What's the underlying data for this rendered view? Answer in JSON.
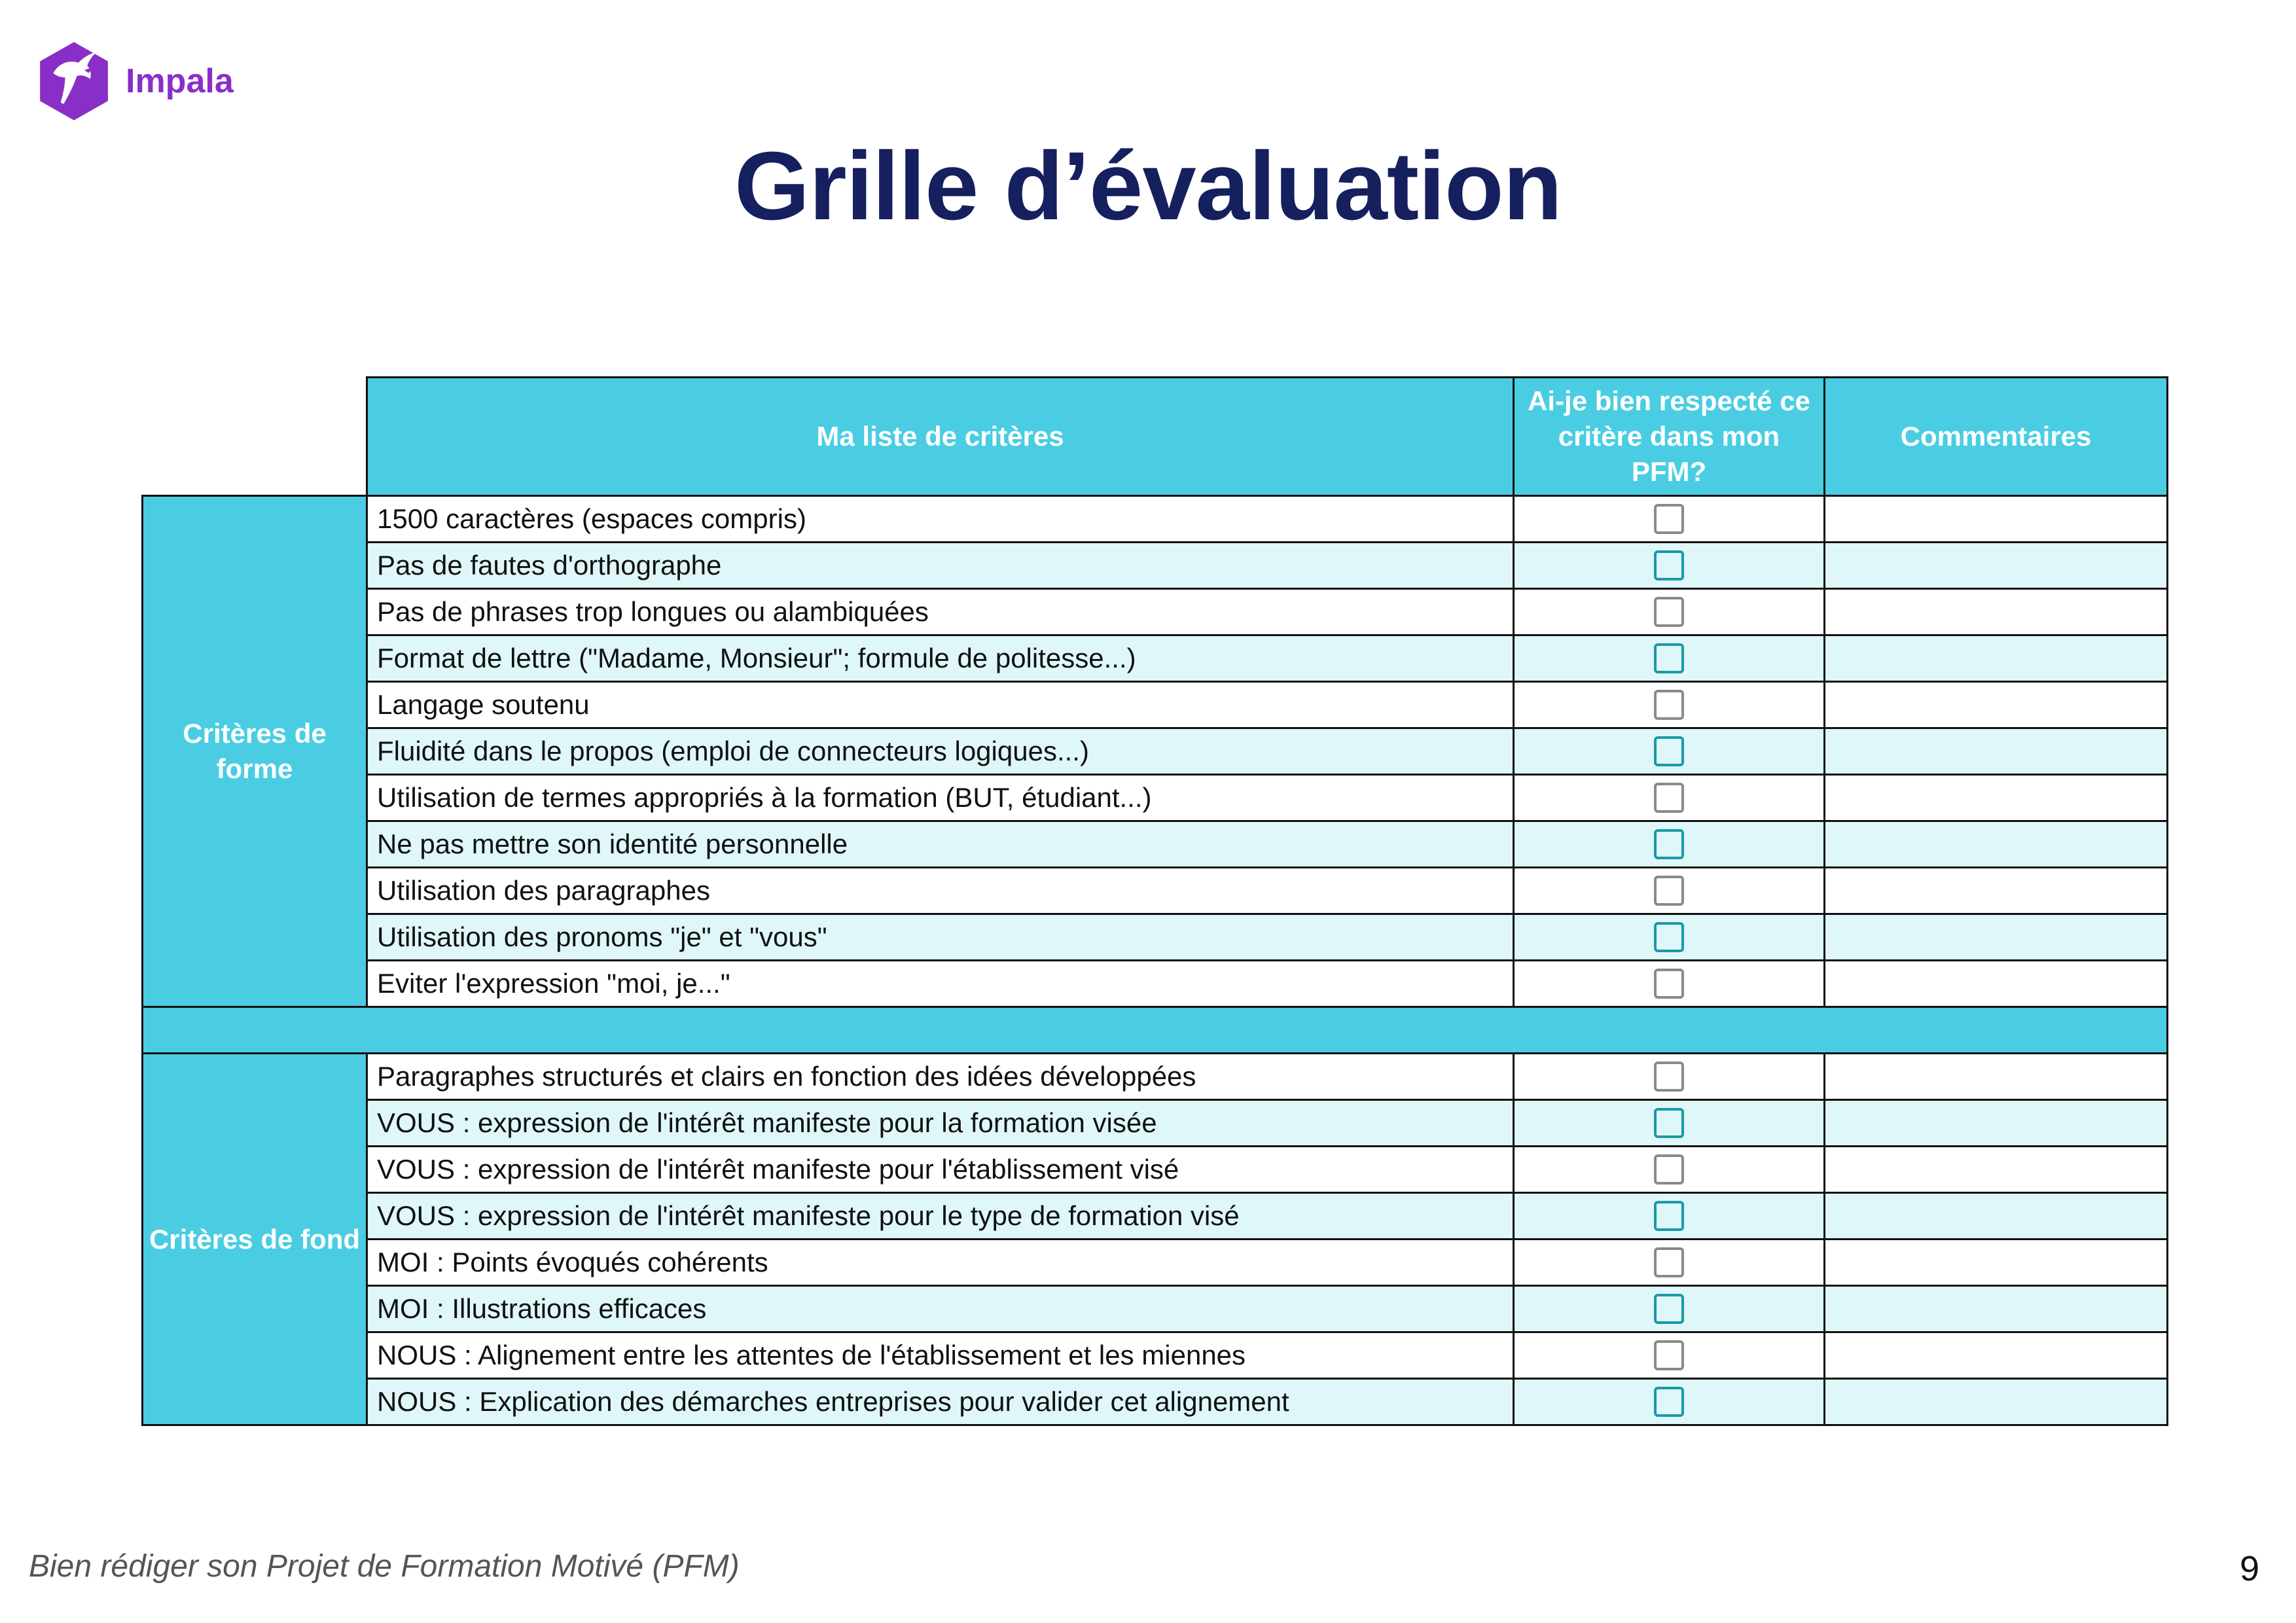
{
  "brand": {
    "name": "Impala",
    "logo_icon": "impala-logo-icon",
    "logo_color": "#8a2ec8"
  },
  "title": "Grille d’évaluation",
  "table": {
    "headers": {
      "criteria": "Ma liste de critères",
      "respected": "Ai-je bien respecté ce critère dans mon PFM?",
      "comments": "Commentaires"
    },
    "groups": [
      {
        "label": "Critères de forme",
        "rows": [
          "1500 caractères (espaces compris)",
          "Pas de fautes d'orthographe",
          "Pas de phrases trop longues ou alambiquées",
          "Format de lettre (\"Madame, Monsieur\"; formule de politesse...)",
          "Langage soutenu",
          "Fluidité dans le propos (emploi de connecteurs logiques...)",
          "Utilisation de termes appropriés à la formation (BUT, étudiant...)",
          "Ne pas mettre son identité personnelle",
          "Utilisation des paragraphes",
          "Utilisation des pronoms \"je\" et \"vous\"",
          "Eviter l'expression \"moi, je...\""
        ]
      },
      {
        "label": "Critères de fond",
        "rows": [
          "Paragraphes structurés et clairs en fonction des idées développées",
          "VOUS : expression de l'intérêt manifeste pour la formation visée",
          "VOUS : expression de l'intérêt manifeste pour l'établissement visé",
          "VOUS : expression de l'intérêt manifeste pour le type de formation visé",
          "MOI : Points évoqués cohérents",
          "MOI : Illustrations efficaces",
          "NOUS : Alignement entre les attentes de l'établissement et les miennes",
          "NOUS : Explication des démarches entreprises pour valider cet alignement"
        ]
      }
    ]
  },
  "colors": {
    "header_bg": "#4acde2",
    "alt_row_bg": "#dff7f9",
    "title": "#16205e"
  },
  "footer": {
    "text": "Bien rédiger son Projet de Formation Motivé (PFM)",
    "page_number": "9"
  }
}
